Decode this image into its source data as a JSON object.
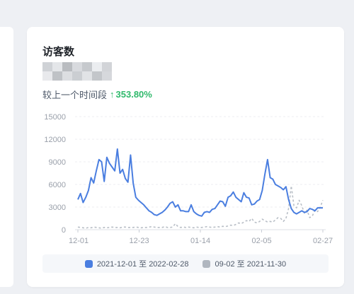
{
  "card": {
    "title": "访客数",
    "compare_label": "较上一个时间段",
    "compare_arrow": "↑",
    "compare_value": "353.80%",
    "blurred_value_colors": [
      "#cfd2d6",
      "#e4e6e9",
      "#b9bcc0",
      "#d8dade",
      "#c6c9cd",
      "#ebedf0",
      "#d2d4d8",
      "#e8e9ec",
      "#bfc2c6",
      "#dcdee1",
      "#cbced2",
      "#e1e3e6",
      "#c3c6ca",
      "#d6d8dc"
    ]
  },
  "legend": {
    "current": {
      "label": "2021-12-01 至 2022-02-28",
      "color": "#4a7ee0"
    },
    "previous": {
      "label": "09-02 至 2021-11-30",
      "color": "#b0b6bf"
    }
  },
  "chart_data": {
    "type": "line",
    "ylim": [
      0,
      15000
    ],
    "yticks": [
      "15000",
      "12000",
      "9000",
      "6000",
      "3000",
      "0"
    ],
    "xticks": [
      "12-01",
      "12-23",
      "01-14",
      "02-05",
      "02-27"
    ],
    "grid": true,
    "legend_position": "bottom",
    "series": [
      {
        "name": "2021-12-01 至 2022-02-28",
        "color": "#4a7ee0",
        "style": "solid",
        "values": [
          4000,
          4800,
          3600,
          4300,
          5200,
          6900,
          6200,
          7800,
          9300,
          9000,
          6400,
          9600,
          8800,
          8300,
          7800,
          10700,
          7500,
          8000,
          6800,
          6300,
          9900,
          6200,
          4300,
          3900,
          3600,
          3300,
          2900,
          2500,
          2300,
          2000,
          1900,
          2100,
          2300,
          2600,
          3000,
          3500,
          3700,
          3000,
          3300,
          2500,
          2500,
          2400,
          2400,
          3300,
          2400,
          2100,
          1900,
          1800,
          2300,
          2400,
          2300,
          2700,
          2800,
          3300,
          3800,
          3700,
          3100,
          4300,
          4500,
          5000,
          4300,
          4000,
          3700,
          4900,
          4300,
          4200,
          3300,
          3400,
          3800,
          4000,
          5200,
          7400,
          9300,
          6900,
          6700,
          6000,
          5800,
          5600,
          5300,
          5700,
          4000,
          2800,
          2300,
          2100,
          2300,
          2500,
          2300,
          2400,
          2800,
          2700,
          2500,
          2900,
          2900,
          2900
        ]
      },
      {
        "name": "09-02 至 2021-11-30",
        "color": "#b8bec6",
        "style": "dashed",
        "values": [
          350,
          300,
          250,
          200,
          300,
          250,
          350,
          300,
          250,
          200,
          300,
          250,
          300,
          350,
          300,
          300,
          250,
          350,
          350,
          300,
          300,
          300,
          350,
          300,
          250,
          300,
          300,
          350,
          400,
          350,
          300,
          300,
          300,
          400,
          300,
          300,
          350,
          800,
          400,
          300,
          350,
          300,
          350,
          300,
          250,
          350,
          300,
          300,
          350,
          400,
          350,
          300,
          350,
          400,
          350,
          450,
          400,
          500,
          600,
          550,
          700,
          900,
          800,
          1000,
          1200,
          1100,
          1500,
          1000,
          900,
          1100,
          1400,
          1200,
          1000,
          1100,
          1000,
          1300,
          1600,
          1500,
          1100,
          1500,
          2800,
          5800,
          3200,
          2900,
          3900,
          3200,
          2200,
          2600,
          1600,
          1800,
          2600,
          2400,
          3000,
          3900
        ]
      }
    ]
  }
}
